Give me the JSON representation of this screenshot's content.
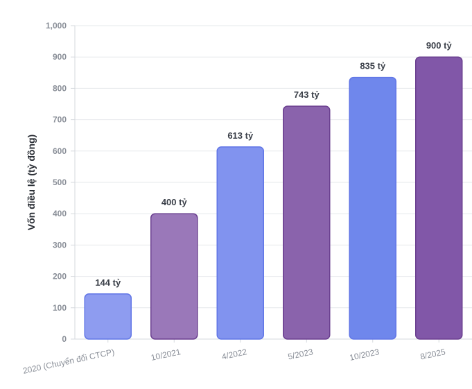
{
  "chart_data": {
    "type": "bar",
    "categories": [
      "2020 (Chuyển đổi CTCP)",
      "10/2021",
      "4/2022",
      "5/2023",
      "10/2023",
      "8/2025"
    ],
    "values": [
      144,
      400,
      613,
      743,
      835,
      900
    ],
    "data_labels": [
      "144 tỷ",
      "400 tỷ",
      "613 tỷ",
      "743 tỷ",
      "835 tỷ",
      "900 tỷ"
    ],
    "ylabel": "Vốn điều lệ (tỷ đồng)",
    "xlabel": "",
    "ylim": [
      0,
      1000
    ],
    "yticks": [
      0,
      100,
      200,
      300,
      400,
      500,
      600,
      700,
      800,
      900,
      1000
    ],
    "ytick_labels": [
      "0",
      "100",
      "200",
      "300",
      "400",
      "500",
      "600",
      "700",
      "800",
      "900",
      "1,000"
    ],
    "grid": true,
    "bar_fills": [
      "#8e9cf0",
      "#9a78b9",
      "#8193ef",
      "#8a63ac",
      "#6f87ec",
      "#8157a8"
    ],
    "bar_strokes": [
      "#6176e6",
      "#6a3f8f",
      "#6176e6",
      "#6a3f8f",
      "#6176e6",
      "#6a3f8f"
    ]
  }
}
